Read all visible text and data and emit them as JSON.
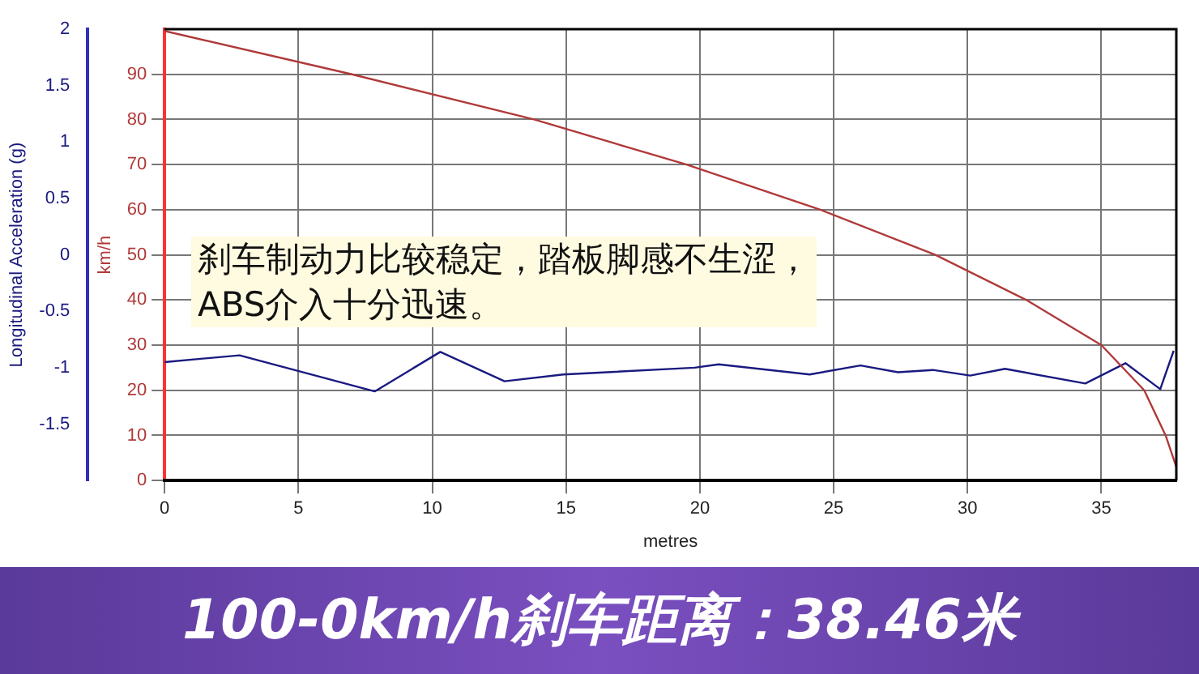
{
  "chart_data": {
    "type": "line",
    "title": "100-0km/h刹车距离：38.46米",
    "xlabel": "metres",
    "ylabel": "km/h",
    "y2label": "Longitudinal Acceleration (g)",
    "annotations": [
      "刹车制动力比较稳定，踏板脚感不生涩，\nABS介入十分迅速。"
    ],
    "xlim": [
      0,
      37.8
    ],
    "xticks": [
      0,
      5,
      10,
      15,
      20,
      25,
      30,
      35
    ],
    "ylim": [
      0,
      100
    ],
    "yticks": [
      0,
      10,
      20,
      30,
      40,
      50,
      60,
      70,
      80,
      90
    ],
    "y2lim": [
      -2,
      2
    ],
    "y2ticks": [
      -1.5,
      -1,
      -0.5,
      0,
      0.5,
      1,
      1.5,
      2
    ],
    "grid": true,
    "legend": false,
    "marker": "none",
    "series": [
      {
        "color": "#b03a3a",
        "x": [
          0,
          7,
          13.8,
          19.5,
          24.5,
          28.8,
          32.2,
          35,
          36.6,
          37.4,
          37.8
        ],
        "values": [
          99.6,
          90,
          80,
          70,
          60,
          50,
          40,
          30,
          20,
          10,
          3
        ]
      },
      {
        "color": "#1a1a80",
        "axis": "y2",
        "x": [
          0,
          2.8,
          7.85,
          10.3,
          12.7,
          14.9,
          19.8,
          20.7,
          24.1,
          26,
          27.4,
          28.7,
          30.1,
          31.4,
          34.4,
          35.9,
          37.2,
          37.7
        ],
        "values": [
          -0.95,
          -0.89,
          -1.21,
          -0.86,
          -1.12,
          -1.06,
          -1,
          -0.97,
          -1.06,
          -0.98,
          -1.04,
          -1.02,
          -1.07,
          -1.01,
          -1.14,
          -0.96,
          -1.19,
          -0.85
        ]
      }
    ]
  }
}
